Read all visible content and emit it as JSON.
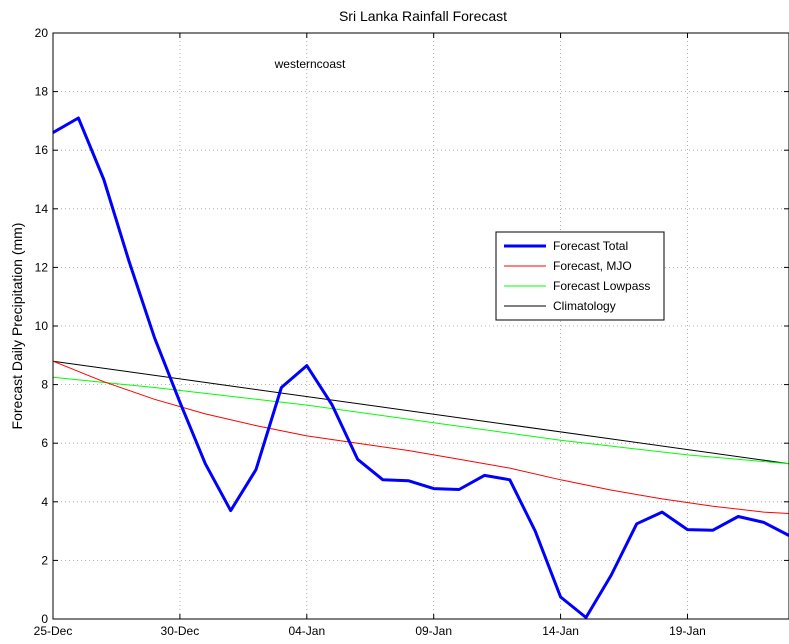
{
  "chart_data": {
    "type": "line",
    "title": "Sri Lanka Rainfall Forecast",
    "annotation": "westerncoast",
    "xlabel": "",
    "ylabel": "Forecast Daily Precipitation (mm)",
    "x_ticks": [
      "25-Dec",
      "30-Dec",
      "04-Jan",
      "09-Jan",
      "14-Jan",
      "19-Jan"
    ],
    "xlim": [
      "25-Dec",
      "23-Jan"
    ],
    "ylim": [
      0,
      20
    ],
    "y_ticks": [
      0,
      2,
      4,
      6,
      8,
      10,
      12,
      14,
      16,
      18,
      20
    ],
    "grid": true,
    "legend_position": "right",
    "series": [
      {
        "name": "Forecast Total",
        "color": "#0000ff",
        "line_width": "thick",
        "x": [
          "25-Dec",
          "26-Dec",
          "27-Dec",
          "28-Dec",
          "29-Dec",
          "30-Dec",
          "31-Dec",
          "01-Jan",
          "02-Jan",
          "03-Jan",
          "04-Jan",
          "05-Jan",
          "06-Jan",
          "07-Jan",
          "08-Jan",
          "09-Jan",
          "10-Jan",
          "11-Jan",
          "12-Jan",
          "13-Jan",
          "14-Jan",
          "15-Jan",
          "16-Jan",
          "17-Jan",
          "18-Jan",
          "19-Jan",
          "20-Jan",
          "21-Jan",
          "22-Jan",
          "23-Jan"
        ],
        "y": [
          16.6,
          17.1,
          15.0,
          12.2,
          9.6,
          7.4,
          5.3,
          3.7,
          5.1,
          7.9,
          8.65,
          7.3,
          5.45,
          4.75,
          4.72,
          4.45,
          4.42,
          4.9,
          4.75,
          3.0,
          0.75,
          0.05,
          1.5,
          3.25,
          3.65,
          3.05,
          3.03,
          3.5,
          3.3,
          2.85
        ]
      },
      {
        "name": "Forecast, MJO",
        "color": "#ff0000",
        "line_width": "thin",
        "x": [
          "25-Dec",
          "27-Dec",
          "29-Dec",
          "31-Dec",
          "02-Jan",
          "04-Jan",
          "06-Jan",
          "08-Jan",
          "10-Jan",
          "12-Jan",
          "14-Jan",
          "16-Jan",
          "18-Jan",
          "20-Jan",
          "22-Jan",
          "23-Jan"
        ],
        "y": [
          8.8,
          8.1,
          7.5,
          7.0,
          6.6,
          6.25,
          6.0,
          5.75,
          5.45,
          5.15,
          4.75,
          4.4,
          4.1,
          3.85,
          3.65,
          3.6
        ]
      },
      {
        "name": "Forecast Lowpass",
        "color": "#00ff00",
        "line_width": "thin",
        "x": [
          "25-Dec",
          "29-Dec",
          "04-Jan",
          "09-Jan",
          "14-Jan",
          "19-Jan",
          "23-Jan"
        ],
        "y": [
          8.25,
          7.9,
          7.3,
          6.7,
          6.1,
          5.6,
          5.3
        ]
      },
      {
        "name": "Climatology",
        "color": "#000000",
        "line_width": "thin",
        "x": [
          "25-Dec",
          "23-Jan"
        ],
        "y": [
          8.8,
          5.3
        ]
      }
    ]
  }
}
